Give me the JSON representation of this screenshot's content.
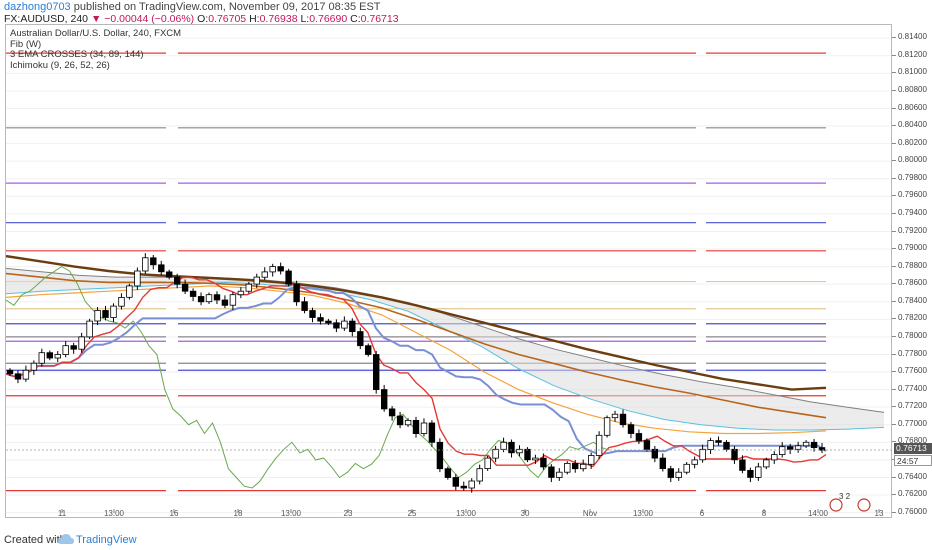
{
  "header": {
    "author": "dazhong0703",
    "published": "published on TradingView.com, November 09, 2017 08:35 EST",
    "symbol": "FX:AUDUSD, 240",
    "change": "▼ −0.00044 (−0.06%)",
    "open_label": "O:",
    "open": "0.76705",
    "high_label": "H:",
    "high": "0.76938",
    "low_label": "L:",
    "low": "0.76690",
    "close_label": "C:",
    "close": "0.76713"
  },
  "legend": {
    "title": "Australian Dollar/U.S. Dollar, 240, FXCM",
    "items": [
      "Fib (W)",
      "3 EMA CROSSES (34, 89, 144)",
      "Ichimoku (9, 26, 52, 26)"
    ]
  },
  "footer": {
    "created_with": "Created with",
    "brand": "TradingView"
  },
  "price_tags": {
    "last": "0.76713",
    "countdown": "24:57"
  },
  "events_badge": "3 2",
  "colors": {
    "up_candle": "#ffffff",
    "down_candle": "#000000",
    "fib_red": "#e53935",
    "ema_fast": "#f6a23c",
    "ema_mid": "#b8651b",
    "ema_slow": "#6b3d10",
    "tenkan": "#e53935",
    "kijun": "#7b8fd6",
    "chikou": "#6aa84f",
    "span_a": "#5bc0de",
    "span_b": "#808080",
    "cloud_bull": "#cfeff5",
    "cloud_bear": "#dddddd",
    "last_price_tag": "#555555"
  },
  "chart_data": {
    "type": "candlestick",
    "title": "Australian Dollar/U.S. Dollar, 240, FXCM",
    "x_ticks": [
      "11",
      "13:00",
      "16",
      "18",
      "13:00",
      "23",
      "25",
      "13:00",
      "30",
      "Nov",
      "13:00",
      "6",
      "8",
      "14:00",
      "13"
    ],
    "y_ticks": [
      "0.81400",
      "0.81200",
      "0.81000",
      "0.80800",
      "0.80600",
      "0.80400",
      "0.80200",
      "0.80000",
      "0.79800",
      "0.79600",
      "0.79400",
      "0.79200",
      "0.79000",
      "0.78800",
      "0.78600",
      "0.78400",
      "0.78200",
      "0.78000",
      "0.77800",
      "0.77600",
      "0.77400",
      "0.77200",
      "0.77000",
      "0.76800",
      "0.76600",
      "0.76400",
      "0.76200",
      "0.76000"
    ],
    "ylim": [
      0.7595,
      0.8155
    ],
    "close_path": [
      0.7758,
      0.7752,
      0.7762,
      0.777,
      0.7782,
      0.7776,
      0.778,
      0.779,
      0.7786,
      0.78,
      0.7818,
      0.783,
      0.7822,
      0.7835,
      0.7845,
      0.7858,
      0.7875,
      0.789,
      0.7882,
      0.7874,
      0.7868,
      0.786,
      0.7852,
      0.7846,
      0.784,
      0.7848,
      0.7842,
      0.7836,
      0.7848,
      0.7852,
      0.786,
      0.7868,
      0.7874,
      0.788,
      0.7875,
      0.786,
      0.784,
      0.783,
      0.7822,
      0.7818,
      0.7816,
      0.781,
      0.7818,
      0.7806,
      0.779,
      0.778,
      0.774,
      0.7718,
      0.771,
      0.77,
      0.7705,
      0.769,
      0.7702,
      0.768,
      0.765,
      0.764,
      0.763,
      0.7628,
      0.7636,
      0.765,
      0.7662,
      0.7672,
      0.768,
      0.7668,
      0.7672,
      0.766,
      0.7662,
      0.7652,
      0.764,
      0.7646,
      0.7656,
      0.765,
      0.7655,
      0.7665,
      0.7688,
      0.7708,
      0.7712,
      0.77,
      0.769,
      0.7682,
      0.7672,
      0.7662,
      0.765,
      0.764,
      0.7646,
      0.7655,
      0.766,
      0.7672,
      0.7682,
      0.768,
      0.7672,
      0.766,
      0.7648,
      0.764,
      0.7652,
      0.766,
      0.7666,
      0.7675,
      0.7672,
      0.7676,
      0.768,
      0.7674,
      0.7671
    ],
    "fib_levels": [
      0.8123,
      0.8038,
      0.7975,
      0.793,
      0.7898,
      0.7863,
      0.7832,
      0.7815,
      0.78,
      0.7795,
      0.777,
      0.7762,
      0.7733,
      0.7625
    ],
    "ema_34": [
      0.7845,
      0.7848,
      0.785,
      0.7852,
      0.7854,
      0.7856,
      0.7858,
      0.7856,
      0.7852,
      0.7847,
      0.7838,
      0.7825,
      0.7805,
      0.7785,
      0.776,
      0.774,
      0.7725,
      0.7712,
      0.7702,
      0.7696,
      0.7692,
      0.769,
      0.769,
      0.7691,
      0.7693
    ],
    "ema_89": [
      0.7872,
      0.7868,
      0.7864,
      0.7862,
      0.7862,
      0.7862,
      0.7861,
      0.7859,
      0.7855,
      0.785,
      0.7842,
      0.7833,
      0.782,
      0.7806,
      0.7792,
      0.778,
      0.777,
      0.776,
      0.7751,
      0.7743,
      0.7736,
      0.7728,
      0.772,
      0.7714,
      0.7708
    ],
    "ema_144": [
      0.7892,
      0.7886,
      0.788,
      0.7875,
      0.7871,
      0.7869,
      0.7867,
      0.7865,
      0.7862,
      0.7858,
      0.7852,
      0.7845,
      0.7836,
      0.7826,
      0.7816,
      0.7806,
      0.7796,
      0.7786,
      0.7777,
      0.7768,
      0.776,
      0.7752,
      0.7746,
      0.774,
      0.7742
    ]
  }
}
